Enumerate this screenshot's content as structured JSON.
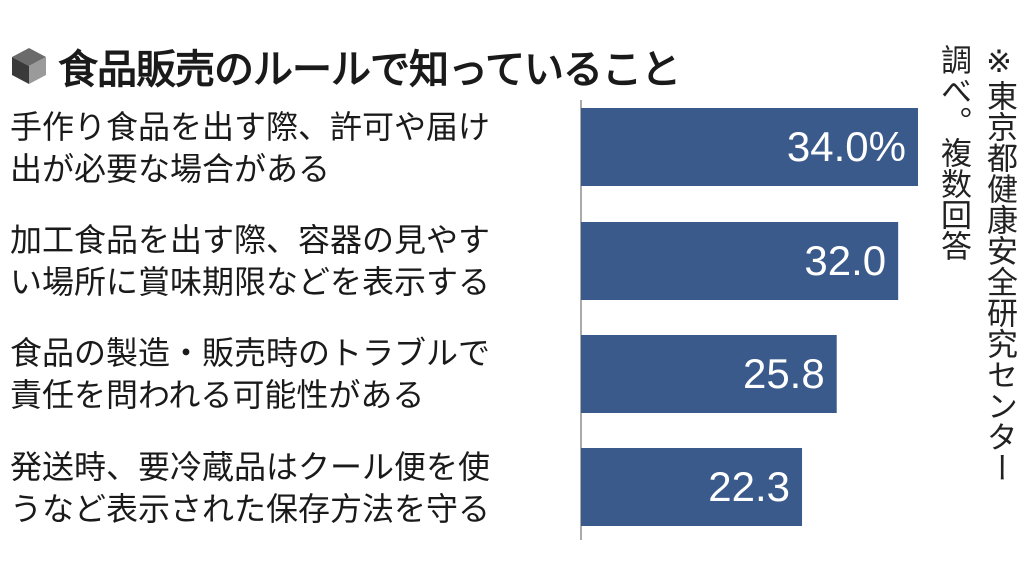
{
  "title": "食品販売のルールで知っていること",
  "note_lines": [
    "※東京都健康安全研究センター",
    "調べ。複数回答"
  ],
  "chart_data": {
    "type": "bar",
    "orientation": "horizontal",
    "categories": [
      [
        "手作り食品を出す際、許可や届け",
        "出が必要な場合がある"
      ],
      [
        "加工食品を出す際、容器の見やす",
        "い場所に賞味期限などを表示する"
      ],
      [
        "食品の製造・販売時のトラブルで",
        "責任を問われる可能性がある"
      ],
      [
        "発送時、要冷蔵品はクール便を使",
        "うなど表示された保存方法を守る"
      ]
    ],
    "values": [
      34.0,
      32.0,
      25.8,
      22.3
    ],
    "value_labels": [
      "34.0%",
      "32.0",
      "25.8",
      "22.3"
    ],
    "bar_color": "#3a5a8c",
    "xlim": [
      0,
      34.0
    ]
  }
}
